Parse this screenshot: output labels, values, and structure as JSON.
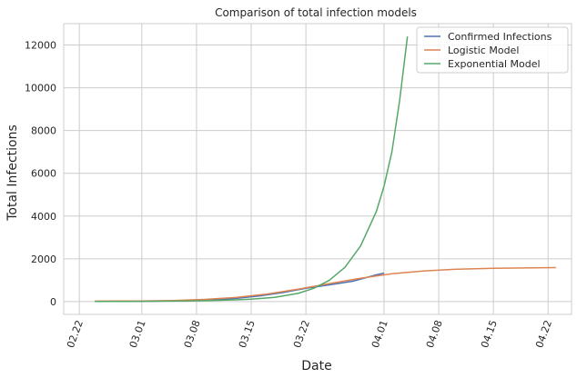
{
  "chart_data": {
    "type": "line",
    "title": "Comparison of total infection models",
    "xlabel": "Date",
    "ylabel": "Total Infections",
    "x_tick_labels": [
      "02.22",
      "03.01",
      "03.08",
      "03.15",
      "03.22",
      "04.01",
      "04.08",
      "04.15",
      "04.22"
    ],
    "x_tick_dates": [
      "2020-02-22",
      "2020-03-01",
      "2020-03-08",
      "2020-03-15",
      "2020-03-22",
      "2020-04-01",
      "2020-04-08",
      "2020-04-15",
      "2020-04-22"
    ],
    "y_ticks": [
      0,
      2000,
      4000,
      6000,
      8000,
      10000,
      12000
    ],
    "xlim": [
      "2020-02-20",
      "2020-04-25"
    ],
    "ylim": [
      -600,
      13000
    ],
    "grid": true,
    "legend_position": "top-right",
    "series": [
      {
        "name": "Confirmed Infections",
        "color": "#4c72b0",
        "points": [
          [
            "2020-02-24",
            5
          ],
          [
            "2020-02-28",
            10
          ],
          [
            "2020-03-03",
            20
          ],
          [
            "2020-03-07",
            40
          ],
          [
            "2020-03-10",
            80
          ],
          [
            "2020-03-13",
            150
          ],
          [
            "2020-03-16",
            260
          ],
          [
            "2020-03-19",
            420
          ],
          [
            "2020-03-22",
            620
          ],
          [
            "2020-03-25",
            780
          ],
          [
            "2020-03-28",
            950
          ],
          [
            "2020-03-31",
            1250
          ],
          [
            "2020-04-01",
            1330
          ]
        ]
      },
      {
        "name": "Logistic Model",
        "color": "#dd8452",
        "points": [
          [
            "2020-02-24",
            20
          ],
          [
            "2020-03-01",
            30
          ],
          [
            "2020-03-05",
            50
          ],
          [
            "2020-03-09",
            100
          ],
          [
            "2020-03-13",
            190
          ],
          [
            "2020-03-17",
            350
          ],
          [
            "2020-03-21",
            580
          ],
          [
            "2020-03-25",
            840
          ],
          [
            "2020-03-29",
            1090
          ],
          [
            "2020-04-02",
            1300
          ],
          [
            "2020-04-06",
            1430
          ],
          [
            "2020-04-10",
            1510
          ],
          [
            "2020-04-15",
            1560
          ],
          [
            "2020-04-23",
            1590
          ]
        ]
      },
      {
        "name": "Exponential Model",
        "color": "#55a868",
        "points": [
          [
            "2020-02-24",
            5
          ],
          [
            "2020-02-28",
            8
          ],
          [
            "2020-03-03",
            15
          ],
          [
            "2020-03-07",
            30
          ],
          [
            "2020-03-11",
            60
          ],
          [
            "2020-03-15",
            110
          ],
          [
            "2020-03-18",
            200
          ],
          [
            "2020-03-21",
            380
          ],
          [
            "2020-03-23",
            620
          ],
          [
            "2020-03-25",
            1000
          ],
          [
            "2020-03-27",
            1600
          ],
          [
            "2020-03-29",
            2600
          ],
          [
            "2020-03-31",
            4200
          ],
          [
            "2020-04-01",
            5400
          ],
          [
            "2020-04-02",
            7000
          ],
          [
            "2020-04-03",
            9400
          ],
          [
            "2020-04-04",
            12400
          ]
        ]
      }
    ]
  }
}
